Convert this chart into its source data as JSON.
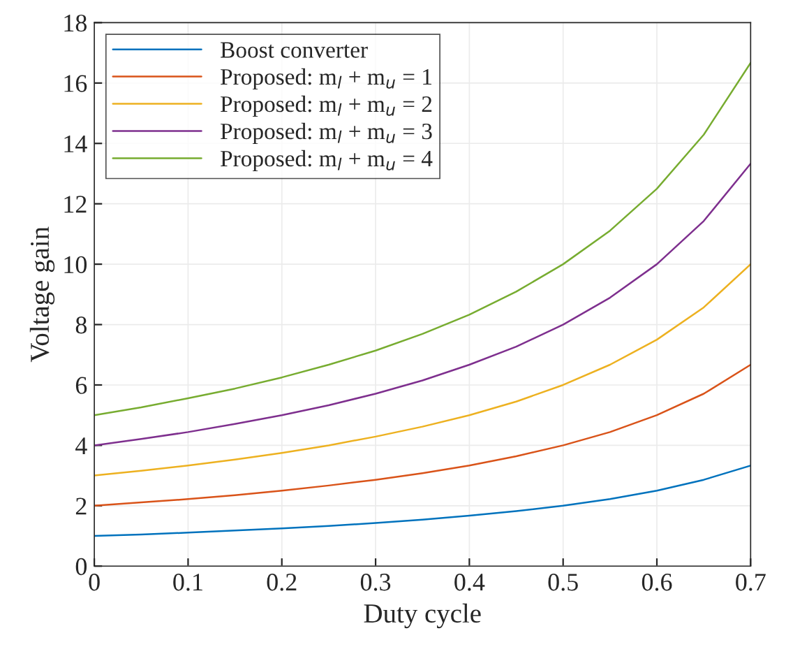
{
  "chart_data": {
    "type": "line",
    "xlabel": "Duty cycle",
    "ylabel": "Voltage gain",
    "x": [
      0,
      0.05,
      0.1,
      0.15,
      0.2,
      0.25,
      0.3,
      0.35,
      0.4,
      0.45,
      0.5,
      0.55,
      0.6,
      0.65,
      0.7
    ],
    "series": [
      {
        "name": "Boost converter",
        "color": "#0072bd",
        "values": [
          1,
          1.05,
          1.11,
          1.18,
          1.25,
          1.33,
          1.43,
          1.54,
          1.67,
          1.82,
          2,
          2.22,
          2.5,
          2.86,
          3.33
        ]
      },
      {
        "name": "Proposed: m$_{l}$ + m$_{u}$ = 1",
        "color": "#d95319",
        "values": [
          2,
          2.11,
          2.22,
          2.35,
          2.5,
          2.67,
          2.86,
          3.08,
          3.33,
          3.64,
          4,
          4.44,
          5,
          5.71,
          6.67
        ]
      },
      {
        "name": "Proposed: m$_{l}$ + m$_{u}$ = 2",
        "color": "#edb120",
        "values": [
          3,
          3.16,
          3.33,
          3.53,
          3.75,
          4,
          4.29,
          4.62,
          5,
          5.45,
          6,
          6.67,
          7.5,
          8.57,
          10
        ]
      },
      {
        "name": "Proposed: m$_{l}$ + m$_{u}$ = 3",
        "color": "#7e2f8e",
        "values": [
          4,
          4.21,
          4.44,
          4.71,
          5,
          5.33,
          5.71,
          6.15,
          6.67,
          7.27,
          8,
          8.89,
          10,
          11.43,
          13.33
        ]
      },
      {
        "name": "Proposed: m$_{l}$ + m$_{u}$ = 4",
        "color": "#77ac30",
        "values": [
          5,
          5.26,
          5.56,
          5.88,
          6.25,
          6.67,
          7.14,
          7.69,
          8.33,
          9.09,
          10,
          11.11,
          12.5,
          14.29,
          16.67
        ]
      }
    ],
    "xlim": [
      0,
      0.7
    ],
    "xticks": [
      0,
      0.1,
      0.2,
      0.3,
      0.4,
      0.5,
      0.6,
      0.7
    ],
    "ylim": [
      0,
      18
    ],
    "yticks": [
      0,
      2,
      4,
      6,
      8,
      10,
      12,
      14,
      16,
      18
    ],
    "grid": true,
    "legend": "top left",
    "marker": "none",
    "line_style": "solid"
  }
}
